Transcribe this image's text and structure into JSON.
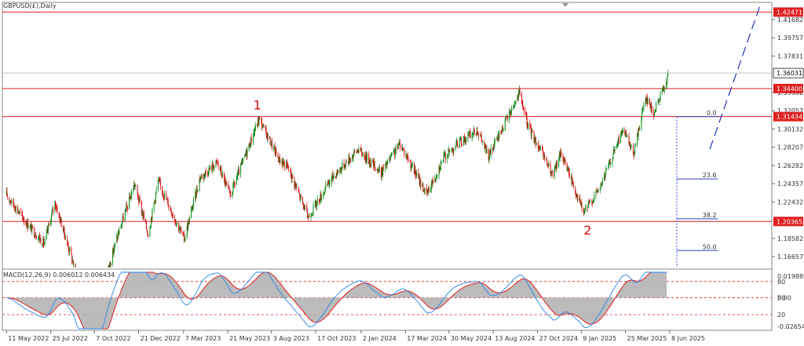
{
  "chart_data": {
    "type": "candlestick",
    "title": "GBPUSD(£),Daily",
    "main": {
      "ylim": [
        1.155,
        1.435
      ],
      "y_ticks": [
        1.41682,
        1.39757,
        1.37831,
        1.33982,
        1.32057,
        1.30132,
        1.28207,
        1.26282,
        1.24357,
        1.22432,
        1.18582,
        1.16657
      ],
      "last_price": {
        "label": "1.36031",
        "value": 1.36031
      },
      "h_lines": [
        {
          "label": "1.42471",
          "value": 1.42471
        },
        {
          "label": "1.34400",
          "value": 1.344
        },
        {
          "label": "1.31434",
          "value": 1.31434
        },
        {
          "label": "1.20365",
          "value": 1.20365
        }
      ],
      "wave_labels": [
        {
          "text": "1",
          "date": "2023-07-10",
          "price": 1.322
        },
        {
          "text": "2",
          "date": "2025-01-20",
          "price": 1.19
        }
      ],
      "fib": [
        {
          "label": "0.0",
          "value": 1.31434
        },
        {
          "label": "23.6",
          "value": 1.2485
        },
        {
          "label": "38.2",
          "value": 1.2065
        },
        {
          "label": "50.0",
          "value": 1.173
        }
      ],
      "price_path": [
        [
          "2022-05-11",
          1.232
        ],
        [
          "2022-06-14",
          1.202
        ],
        [
          "2022-07-14",
          1.18
        ],
        [
          "2022-08-01",
          1.224
        ],
        [
          "2022-09-01",
          1.16
        ],
        [
          "2022-09-26",
          1.04
        ],
        [
          "2022-10-20",
          1.13
        ],
        [
          "2022-11-15",
          1.188
        ],
        [
          "2022-12-14",
          1.243
        ],
        [
          "2023-01-06",
          1.19
        ],
        [
          "2023-01-23",
          1.246
        ],
        [
          "2023-03-08",
          1.185
        ],
        [
          "2023-04-04",
          1.25
        ],
        [
          "2023-05-03",
          1.266
        ],
        [
          "2023-05-25",
          1.231
        ],
        [
          "2023-07-13",
          1.312
        ],
        [
          "2023-08-15",
          1.27
        ],
        [
          "2023-09-01",
          1.26
        ],
        [
          "2023-10-04",
          1.208
        ],
        [
          "2023-11-14",
          1.25
        ],
        [
          "2023-12-28",
          1.28
        ],
        [
          "2024-02-05",
          1.255
        ],
        [
          "2024-03-08",
          1.286
        ],
        [
          "2024-04-22",
          1.232
        ],
        [
          "2024-05-20",
          1.27
        ],
        [
          "2024-06-12",
          1.285
        ],
        [
          "2024-07-17",
          1.3
        ],
        [
          "2024-08-05",
          1.272
        ],
        [
          "2024-09-26",
          1.339
        ],
        [
          "2024-10-10",
          1.306
        ],
        [
          "2024-11-22",
          1.252
        ],
        [
          "2024-12-06",
          1.277
        ],
        [
          "2025-01-13",
          1.213
        ],
        [
          "2025-02-10",
          1.24
        ],
        [
          "2025-03-20",
          1.3
        ],
        [
          "2025-04-08",
          1.275
        ],
        [
          "2025-04-28",
          1.336
        ],
        [
          "2025-05-12",
          1.318
        ],
        [
          "2025-06-05",
          1.357
        ]
      ],
      "projection": [
        [
          "2025-08-15",
          1.28
        ],
        [
          "2025-11-10",
          1.435
        ]
      ]
    },
    "macd": {
      "title": "MACD(12,26,9) 0.006012 0.006434",
      "y_ticks": [
        0.019889,
        0.0,
        -0.026542
      ],
      "level_labels": [
        "80",
        "50",
        "20"
      ],
      "ylim": [
        -0.03,
        0.025
      ]
    },
    "x_tick_labels": [
      "11 May 2022",
      "25 Jul 2022",
      "7 Oct 2022",
      "21 Dec 2022",
      "7 Mar 2023",
      "21 May 2023",
      "3 Aug 2023",
      "17 Oct 2023",
      "2 Jan 2024",
      "17 Mar 2024",
      "30 May 2024",
      "13 Aug 2024",
      "27 Oct 2024",
      "9 Jan 2025",
      "25 Mar 2025",
      "8 Jun 2025"
    ],
    "colors": {
      "up": "#0a8a18",
      "down": "#d81010",
      "hline": "#e02020",
      "fib": "#3344cc",
      "projection": "#2233bb",
      "wave_label": "#d81010",
      "macd_hist": "#b4b4b4",
      "macd_signal": "#e02020",
      "macd_line": "#2a86e8"
    }
  }
}
